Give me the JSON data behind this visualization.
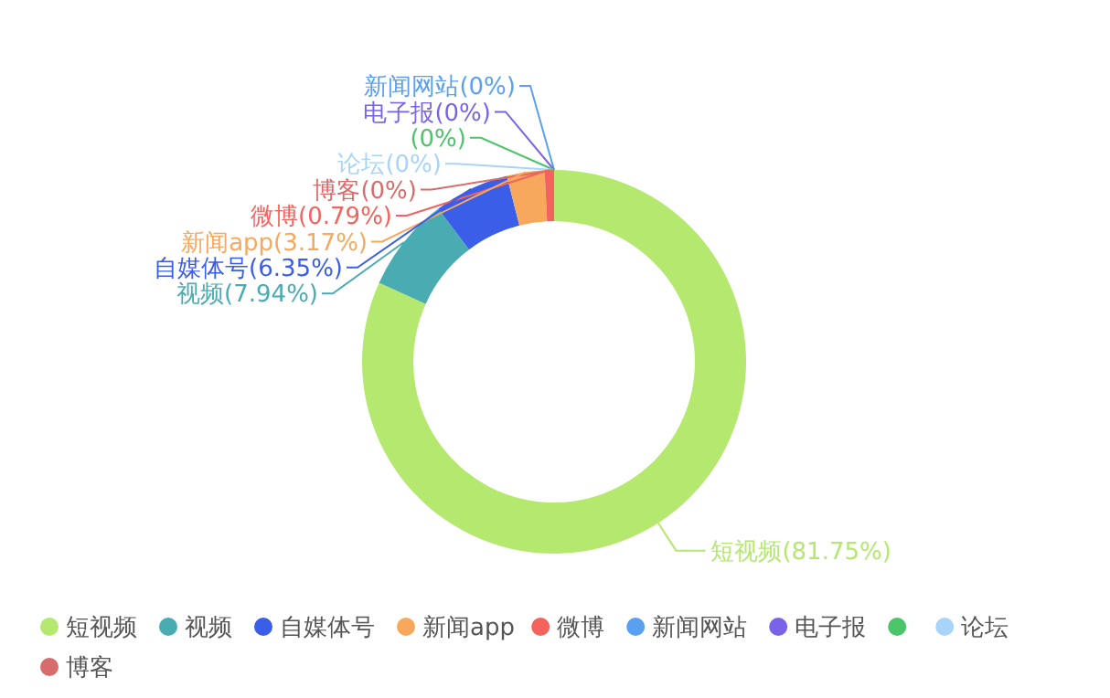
{
  "chart_data": {
    "type": "donut",
    "categories": [
      "短视频",
      "视频",
      "自媒体号",
      "新闻app",
      "微博",
      "新闻网站",
      "电子报",
      null,
      "论坛",
      "博客"
    ],
    "values": [
      81.75,
      7.94,
      6.35,
      3.17,
      0.79,
      0,
      0,
      0,
      0,
      0
    ],
    "colors": [
      "#b5e86f",
      "#4aacb3",
      "#3b5ee8",
      "#f7a85c",
      "#f3625c",
      "#5aa0f0",
      "#7a63e8",
      "#4cc46a",
      "#a8d4fa",
      "#d86b6b"
    ],
    "value_labels": [
      "(81.75%)",
      "(7.94%)",
      "(6.35%)",
      "(3.17%)",
      "(0.79%)",
      "(0%)",
      "(0%)",
      "(0%)",
      "(0%)",
      "(0%)"
    ],
    "legend": "bottom"
  }
}
